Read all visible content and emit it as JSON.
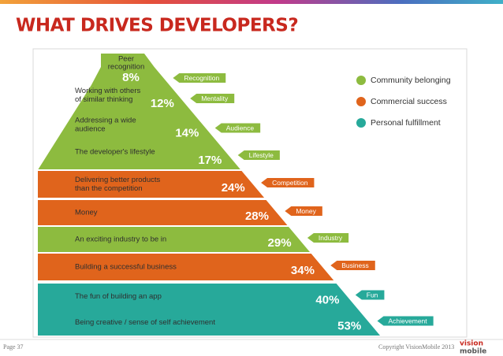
{
  "title": "WHAT DRIVES DEVELOPERS?",
  "chart_data": {
    "type": "pyramid",
    "series": [
      {
        "name": "Community belonging",
        "color": "#8dbb3f",
        "categories": [
          [
            "Peer",
            "recognition"
          ],
          [
            "Working with others",
            "of similar thinking"
          ],
          [
            "Addressing a wide",
            "audience"
          ],
          [
            "The developer's lifestyle"
          ],
          [
            "An exciting industry to be in"
          ]
        ],
        "tags": [
          "Recognition",
          "Mentality",
          "Audience",
          "Lifestyle",
          "Industry"
        ],
        "values": [
          8,
          12,
          14,
          17,
          29
        ],
        "value_labels": [
          "8%",
          "12%",
          "14%",
          "17%",
          "29%"
        ]
      },
      {
        "name": "Commercial success",
        "color": "#e0641c",
        "categories": [
          [
            "Delivering better products",
            "than the competition"
          ],
          [
            "Money"
          ],
          [
            "Building a successful business"
          ]
        ],
        "tags": [
          "Competition",
          "Money",
          "Business"
        ],
        "values": [
          24,
          28,
          34
        ],
        "value_labels": [
          "24%",
          "28%",
          "34%"
        ]
      },
      {
        "name": "Personal fulfillment",
        "color": "#27a99a",
        "categories": [
          [
            "The fun of building an app"
          ],
          [
            "Being creative / sense of  self achievement"
          ]
        ],
        "tags": [
          "Fun",
          "Achievement"
        ],
        "values": [
          40,
          53
        ],
        "value_labels": [
          "40%",
          "53%"
        ]
      }
    ]
  },
  "footer": {
    "page": "Page 37",
    "copyright": "Copyright VisionMobile 2013",
    "logo": [
      "vision",
      "mobile"
    ]
  }
}
